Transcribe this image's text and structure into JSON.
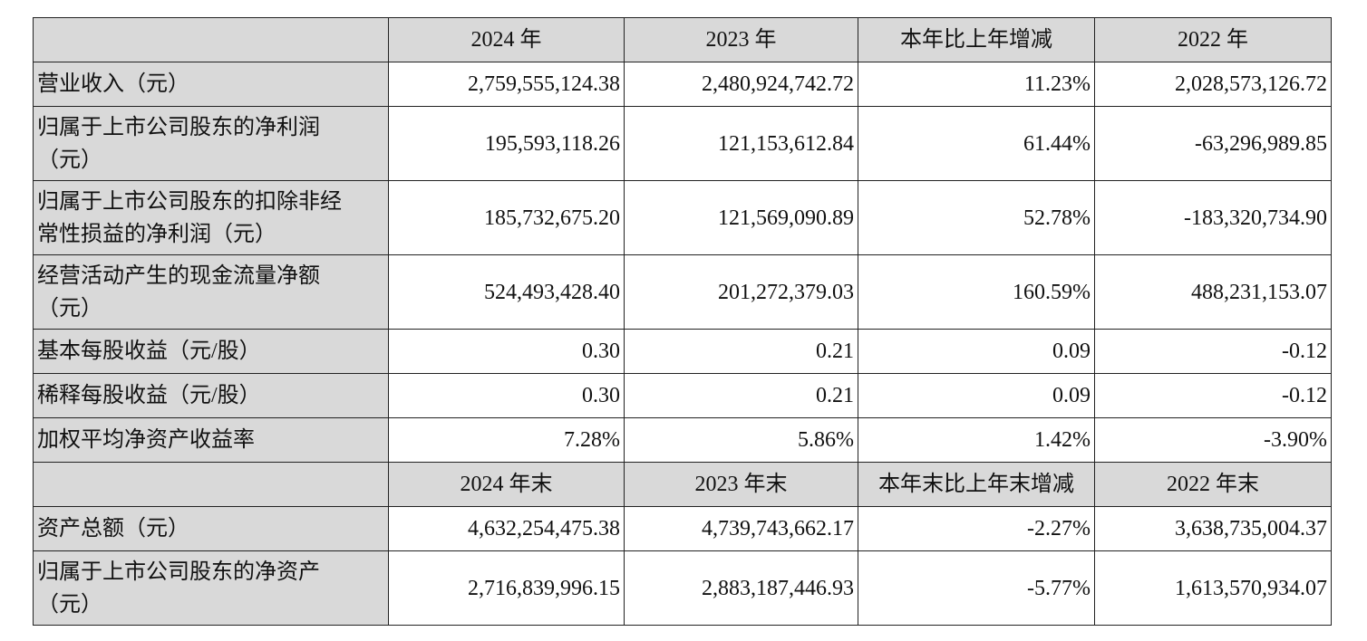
{
  "table": {
    "header": [
      "2024 年",
      "2023 年",
      "本年比上年增减",
      "2022 年"
    ],
    "rows": [
      [
        "营业收入（元）",
        "2,759,555,124.38",
        "2,480,924,742.72",
        "11.23%",
        "2,028,573,126.72"
      ],
      [
        "归属于上市公司股东的净利润\n（元）",
        "195,593,118.26",
        "121,153,612.84",
        "61.44%",
        "-63,296,989.85"
      ],
      [
        "归属于上市公司股东的扣除非经\n常性损益的净利润（元）",
        "185,732,675.20",
        "121,569,090.89",
        "52.78%",
        "-183,320,734.90"
      ],
      [
        "经营活动产生的现金流量净额\n（元）",
        "524,493,428.40",
        "201,272,379.03",
        "160.59%",
        "488,231,153.07"
      ],
      [
        "基本每股收益（元/股）",
        "0.30",
        "0.21",
        "0.09",
        "-0.12"
      ],
      [
        "稀释每股收益（元/股）",
        "0.30",
        "0.21",
        "0.09",
        "-0.12"
      ],
      [
        "加权平均净资产收益率",
        "7.28%",
        "5.86%",
        "1.42%",
        "-3.90%"
      ]
    ],
    "header2": [
      "2024 年末",
      "2023 年末",
      "本年末比上年末增减",
      "2022 年末"
    ],
    "rows2": [
      [
        "资产总额（元）",
        "4,632,254,475.38",
        "4,739,743,662.17",
        "-2.27%",
        "3,638,735,004.37"
      ],
      [
        "归属于上市公司股东的净资产\n（元）",
        "2,716,839,996.15",
        "2,883,187,446.93",
        "-5.77%",
        "1,613,570,934.07"
      ]
    ]
  }
}
